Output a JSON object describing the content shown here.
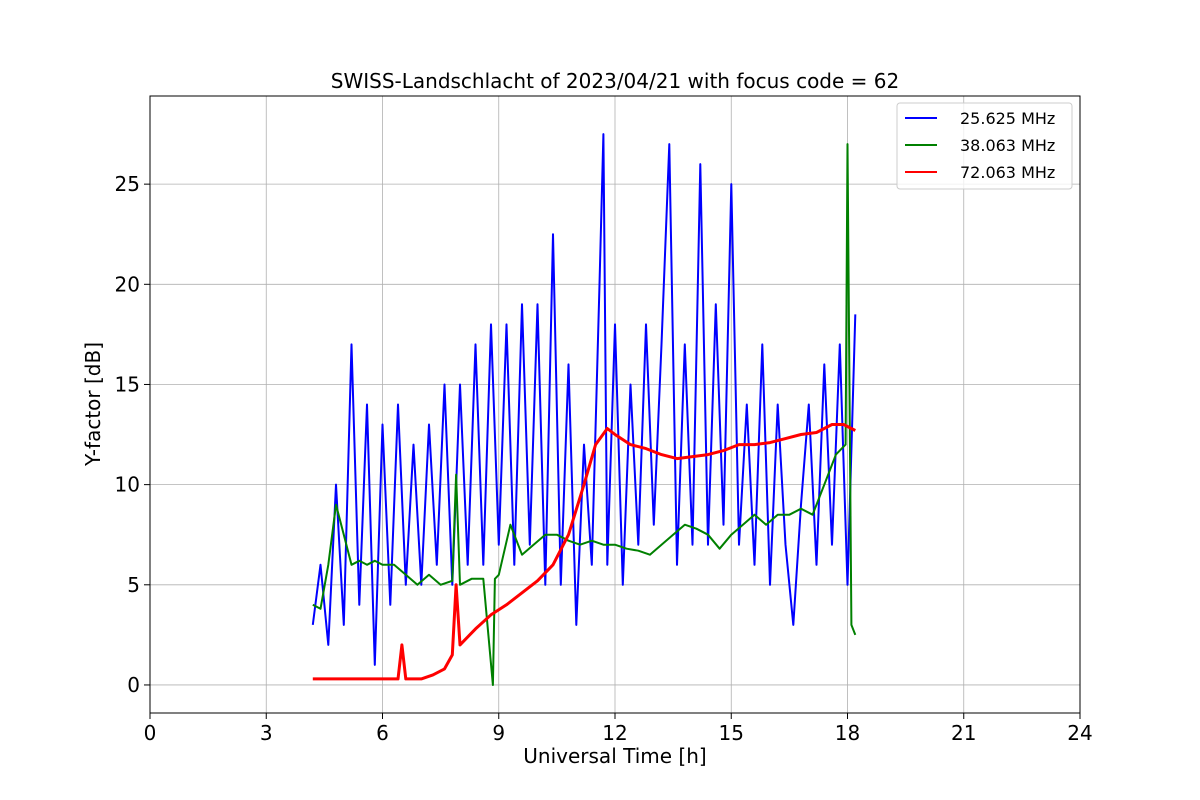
{
  "chart_data": {
    "type": "line",
    "title": "SWISS-Landschlacht of 2023/04/21 with focus code = 62",
    "xlabel": "Universal Time [h]",
    "ylabel": "Y-factor [dB]",
    "xlim": [
      0,
      24
    ],
    "ylim": [
      -1.4,
      29.4
    ],
    "xticks": [
      0,
      3,
      6,
      9,
      12,
      15,
      18,
      21,
      24
    ],
    "xtick_labels": [
      "0",
      "3",
      "6",
      "9",
      "12",
      "15",
      "18",
      "21",
      "24"
    ],
    "yticks": [
      0,
      5,
      10,
      15,
      20,
      25
    ],
    "ytick_labels": [
      "0",
      "5",
      "10",
      "15",
      "20",
      "25"
    ],
    "grid": true,
    "legend_position": "top-right",
    "series": [
      {
        "name": "25.625 MHz",
        "color": "#0000ff",
        "x": [
          4.2,
          4.4,
          4.6,
          4.8,
          5.0,
          5.2,
          5.4,
          5.6,
          5.8,
          6.0,
          6.2,
          6.4,
          6.6,
          6.8,
          7.0,
          7.2,
          7.4,
          7.6,
          7.8,
          8.0,
          8.2,
          8.4,
          8.6,
          8.8,
          9.0,
          9.2,
          9.4,
          9.6,
          9.8,
          10.0,
          10.2,
          10.4,
          10.6,
          10.8,
          11.0,
          11.2,
          11.4,
          11.6,
          11.7,
          11.8,
          12.0,
          12.2,
          12.4,
          12.6,
          12.8,
          13.0,
          13.2,
          13.4,
          13.6,
          13.8,
          14.0,
          14.2,
          14.4,
          14.6,
          14.8,
          15.0,
          15.2,
          15.4,
          15.6,
          15.8,
          16.0,
          16.2,
          16.4,
          16.6,
          16.8,
          17.0,
          17.2,
          17.4,
          17.6,
          17.8,
          18.0,
          18.2
        ],
        "y": [
          3.0,
          6.0,
          2.0,
          10.0,
          3.0,
          17.0,
          4.0,
          14.0,
          1.0,
          13.0,
          4.0,
          14.0,
          5.0,
          12.0,
          5.0,
          13.0,
          6.0,
          15.0,
          5.0,
          15.0,
          6.0,
          17.0,
          6.0,
          18.0,
          7.0,
          18.0,
          6.0,
          19.0,
          7.0,
          19.0,
          5.0,
          22.5,
          5.0,
          16.0,
          3.0,
          12.0,
          6.0,
          20.0,
          27.5,
          6.0,
          18.0,
          5.0,
          15.0,
          7.0,
          18.0,
          8.0,
          17.0,
          27.0,
          6.0,
          17.0,
          7.0,
          26.0,
          7.0,
          19.0,
          8.0,
          25.0,
          7.0,
          14.0,
          6.0,
          17.0,
          5.0,
          14.0,
          7.0,
          3.0,
          9.0,
          14.0,
          6.0,
          16.0,
          7.0,
          17.0,
          5.0,
          18.5
        ]
      },
      {
        "name": "38.063 MHz",
        "color": "#008000",
        "x": [
          4.2,
          4.4,
          4.6,
          4.8,
          5.0,
          5.2,
          5.4,
          5.6,
          5.8,
          6.0,
          6.3,
          6.6,
          6.9,
          7.2,
          7.5,
          7.8,
          7.9,
          8.0,
          8.3,
          8.6,
          8.85,
          8.9,
          9.0,
          9.3,
          9.6,
          9.9,
          10.2,
          10.5,
          10.8,
          11.1,
          11.4,
          11.7,
          12.0,
          12.3,
          12.6,
          12.9,
          13.2,
          13.5,
          13.8,
          14.1,
          14.4,
          14.7,
          15.0,
          15.3,
          15.6,
          15.9,
          16.2,
          16.5,
          16.8,
          17.1,
          17.4,
          17.7,
          17.95,
          18.0,
          18.1,
          18.2
        ],
        "y": [
          4.0,
          3.8,
          6.0,
          9.0,
          7.5,
          6.0,
          6.2,
          6.0,
          6.2,
          6.0,
          6.0,
          5.5,
          5.0,
          5.5,
          5.0,
          5.2,
          10.5,
          5.0,
          5.3,
          5.3,
          0.0,
          5.3,
          5.5,
          8.0,
          6.5,
          7.0,
          7.5,
          7.5,
          7.2,
          7.0,
          7.2,
          7.0,
          7.0,
          6.8,
          6.7,
          6.5,
          7.0,
          7.5,
          8.0,
          7.8,
          7.5,
          6.8,
          7.5,
          8.0,
          8.5,
          8.0,
          8.5,
          8.5,
          8.8,
          8.5,
          10.0,
          11.5,
          12.0,
          27.0,
          3.0,
          2.5
        ]
      },
      {
        "name": "72.063 MHz",
        "color": "#ff0000",
        "x": [
          4.2,
          4.6,
          5.0,
          5.5,
          6.0,
          6.4,
          6.5,
          6.6,
          7.0,
          7.3,
          7.6,
          7.8,
          7.9,
          8.0,
          8.4,
          8.8,
          9.2,
          9.6,
          10.0,
          10.4,
          10.8,
          11.2,
          11.5,
          11.8,
          12.0,
          12.4,
          12.8,
          13.2,
          13.6,
          14.0,
          14.4,
          14.8,
          15.2,
          15.6,
          16.0,
          16.4,
          16.8,
          17.2,
          17.6,
          17.9,
          18.2
        ],
        "y": [
          0.3,
          0.3,
          0.3,
          0.3,
          0.3,
          0.3,
          2.0,
          0.3,
          0.3,
          0.5,
          0.8,
          1.5,
          5.0,
          2.0,
          2.8,
          3.5,
          4.0,
          4.6,
          5.2,
          6.0,
          7.5,
          10.0,
          12.0,
          12.8,
          12.5,
          12.0,
          11.8,
          11.5,
          11.3,
          11.4,
          11.5,
          11.7,
          12.0,
          12.0,
          12.1,
          12.3,
          12.5,
          12.6,
          13.0,
          13.0,
          12.7
        ]
      }
    ]
  }
}
